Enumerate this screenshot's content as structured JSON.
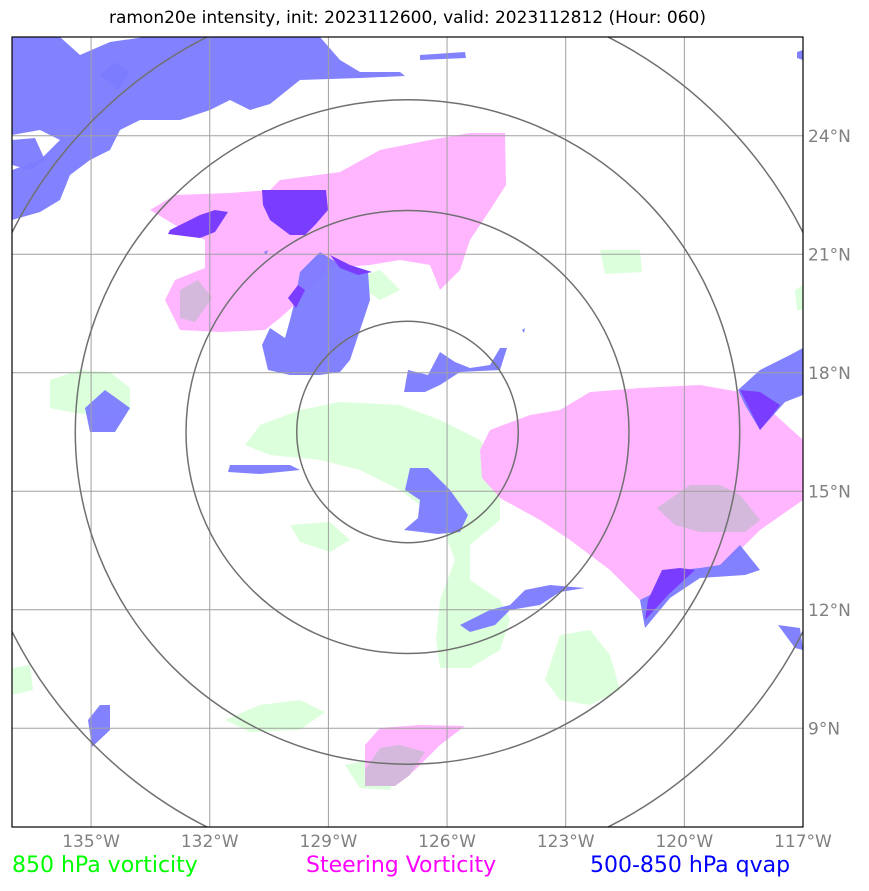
{
  "title": "ramon20e intensity, init: 2023112600, valid: 2023112812 (Hour: 060)",
  "map": {
    "lon_range": [
      -137,
      -117
    ],
    "lat_range": [
      6.5,
      26.5
    ],
    "lon_ticks": [
      {
        "value": -135,
        "label": "135°W"
      },
      {
        "value": -132,
        "label": "132°W"
      },
      {
        "value": -129,
        "label": "129°W"
      },
      {
        "value": -126,
        "label": "126°W"
      },
      {
        "value": -123,
        "label": "123°W"
      },
      {
        "value": -120,
        "label": "120°W"
      },
      {
        "value": -117,
        "label": "117°W"
      }
    ],
    "lat_ticks": [
      {
        "value": 9,
        "label": "9°N"
      },
      {
        "value": 12,
        "label": "12°N"
      },
      {
        "value": 15,
        "label": "15°N"
      },
      {
        "value": 18,
        "label": "18°N"
      },
      {
        "value": 21,
        "label": "21°N"
      },
      {
        "value": 24,
        "label": "24°N"
      }
    ],
    "storm_center": {
      "lon": -127,
      "lat": 16.5
    },
    "range_rings_deg": [
      2.8,
      5.6,
      8.4,
      11.2
    ],
    "gridlines": true
  },
  "legend": [
    {
      "label": "850 hPa vorticity",
      "color": "#00ff00"
    },
    {
      "label": "Steering Vorticity",
      "color": "#ff00ff"
    },
    {
      "label": "500-850 hPa qvap",
      "color": "#0000ff"
    }
  ],
  "fills": {
    "vorticity_850": "#dcffdc",
    "steering": "#ffb6ff",
    "qvap": "#7b7bff",
    "qvap_dark": "#7a3cff",
    "overlap": "#d4b9dd"
  }
}
